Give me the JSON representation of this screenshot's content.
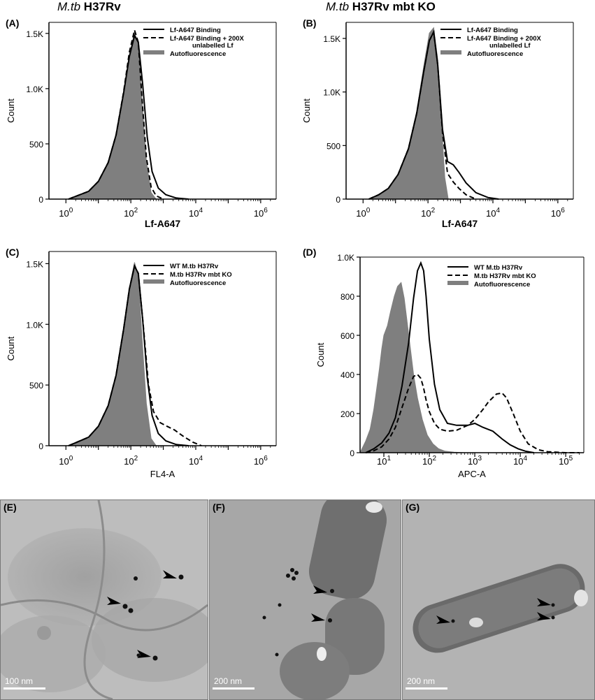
{
  "headers": {
    "left_italic": "M.tb",
    "left_bold": "H37Rv",
    "right_italic": "M.tb",
    "right_bold": "H37Rv mbt KO"
  },
  "colors": {
    "fill": "#7f7f7f",
    "line": "#000000",
    "em_background": "#b8b8b8"
  },
  "chart_data": [
    {
      "panel": "(A)",
      "type": "area",
      "x_scale": "log",
      "xlim": [
        0.3,
        3000000
      ],
      "ylim": [
        0,
        1600
      ],
      "xlabel": "Lf-A647",
      "ylabel": "Count",
      "x_ticks": [
        "10^0",
        "10^2",
        "10^4",
        "10^6"
      ],
      "y_ticks": [
        "0",
        "500",
        "1.0K",
        "1.5K"
      ],
      "legend": [
        "Lf-A647 Binding",
        "Lf-A647 Binding + 200X",
        "unlabelled Lf",
        "Autofluorescence"
      ],
      "series": [
        {
          "name": "Autofluorescence",
          "style": "fill",
          "x": [
            1.2,
            2,
            5,
            10,
            20,
            35,
            60,
            90,
            130,
            170,
            220,
            300,
            420,
            600
          ],
          "y": [
            0,
            20,
            60,
            150,
            320,
            560,
            950,
            1300,
            1510,
            1400,
            900,
            350,
            60,
            0
          ]
        },
        {
          "name": "Lf-A647 Binding",
          "style": "solid",
          "x": [
            1.2,
            2,
            5,
            10,
            20,
            35,
            60,
            90,
            130,
            170,
            230,
            320,
            450,
            700,
            1200,
            2500,
            6000
          ],
          "y": [
            0,
            25,
            70,
            160,
            330,
            580,
            960,
            1290,
            1480,
            1420,
            1050,
            560,
            250,
            100,
            40,
            10,
            0
          ]
        },
        {
          "name": "Lf-A647 Binding + 200X unlabelled Lf",
          "style": "dash",
          "x": [
            1.2,
            2,
            5,
            10,
            20,
            35,
            60,
            90,
            130,
            170,
            220,
            300,
            420,
            600,
            1000
          ],
          "y": [
            0,
            25,
            70,
            160,
            330,
            580,
            970,
            1330,
            1530,
            1420,
            920,
            380,
            110,
            30,
            0
          ]
        }
      ]
    },
    {
      "panel": "(B)",
      "type": "area",
      "x_scale": "log",
      "xlim": [
        0.3,
        3000000
      ],
      "ylim": [
        0,
        1650
      ],
      "xlabel": "Lf-A647",
      "ylabel": "Count",
      "x_ticks": [
        "10^0",
        "10^2",
        "10^4",
        "10^6"
      ],
      "y_ticks": [
        "0",
        "500",
        "1.0K",
        "1.5K"
      ],
      "legend": [
        "Lf-A647 Binding",
        "Lf-A647 Binding + 200X",
        "unlabelled Lf",
        "Autofluorescence"
      ],
      "series": [
        {
          "name": "Autofluorescence",
          "style": "fill",
          "x": [
            1.5,
            3,
            6,
            12,
            25,
            45,
            75,
            110,
            150,
            200,
            260,
            330,
            420
          ],
          "y": [
            0,
            40,
            100,
            230,
            480,
            820,
            1250,
            1550,
            1600,
            1300,
            700,
            200,
            0
          ]
        },
        {
          "name": "Lf-A647 Binding",
          "style": "solid",
          "x": [
            1.5,
            3,
            6,
            12,
            25,
            45,
            75,
            110,
            150,
            200,
            280,
            400,
            600,
            900,
            1500,
            3000,
            7000,
            15000
          ],
          "y": [
            0,
            40,
            100,
            230,
            470,
            800,
            1200,
            1480,
            1560,
            1250,
            650,
            350,
            320,
            250,
            150,
            60,
            15,
            0
          ]
        },
        {
          "name": "Lf-A647 Binding + 200X unlabelled Lf",
          "style": "dash",
          "x": [
            1.5,
            3,
            6,
            12,
            25,
            45,
            75,
            110,
            150,
            200,
            280,
            400,
            600,
            900,
            1500,
            3000
          ],
          "y": [
            0,
            40,
            100,
            230,
            470,
            800,
            1200,
            1480,
            1560,
            1250,
            620,
            240,
            160,
            100,
            40,
            0
          ]
        }
      ]
    },
    {
      "panel": "(C)",
      "type": "area",
      "x_scale": "log",
      "xlim": [
        0.3,
        3000000
      ],
      "ylim": [
        0,
        1600
      ],
      "xlabel": "FL4-A",
      "ylabel": "Count",
      "x_ticks": [
        "10^0",
        "10^2",
        "10^4",
        "10^6"
      ],
      "y_ticks": [
        "0",
        "500",
        "1.0K",
        "1.5K"
      ],
      "legend": [
        "WT M.tb H37Rv",
        "M.tb H37Rv mbt KO",
        "Autofluorescence"
      ],
      "series": [
        {
          "name": "Autofluorescence",
          "style": "fill",
          "x": [
            1.2,
            2,
            5,
            10,
            20,
            35,
            60,
            90,
            130,
            170,
            220,
            300,
            420,
            600
          ],
          "y": [
            0,
            20,
            60,
            150,
            320,
            560,
            950,
            1300,
            1510,
            1400,
            900,
            350,
            60,
            0
          ]
        },
        {
          "name": "WT M.tb H37Rv",
          "style": "solid",
          "x": [
            1.2,
            2,
            5,
            10,
            20,
            35,
            60,
            90,
            130,
            170,
            230,
            320,
            450,
            700,
            1200,
            2500,
            6000
          ],
          "y": [
            0,
            25,
            70,
            160,
            330,
            580,
            960,
            1290,
            1480,
            1420,
            1050,
            560,
            250,
            100,
            40,
            10,
            0
          ]
        },
        {
          "name": "M.tb H37Rv mbt KO",
          "style": "dash",
          "x": [
            1.2,
            2,
            5,
            10,
            20,
            35,
            60,
            90,
            130,
            170,
            240,
            350,
            500,
            800,
            1300,
            2200,
            4000,
            8000,
            15000
          ],
          "y": [
            0,
            25,
            70,
            160,
            330,
            580,
            960,
            1290,
            1480,
            1420,
            1000,
            500,
            280,
            190,
            160,
            130,
            80,
            30,
            0
          ]
        }
      ]
    },
    {
      "panel": "(D)",
      "type": "area",
      "x_scale": "log",
      "xlim": [
        3,
        250000
      ],
      "ylim": [
        0,
        1000
      ],
      "xlabel": "APC-A",
      "ylabel": "Count",
      "x_ticks": [
        "10^1",
        "10^2",
        "10^3",
        "10^4",
        "10^5"
      ],
      "y_ticks": [
        "0",
        "200",
        "400",
        "600",
        "800",
        "1.0K"
      ],
      "legend": [
        "WT M.tb H37Rv",
        "M.tb H37Rv mbt KO",
        "Autofluorescence"
      ],
      "series": [
        {
          "name": "Autofluorescence",
          "style": "fill",
          "x": [
            3,
            4,
            5,
            6,
            7,
            8,
            9,
            10,
            12,
            14,
            17,
            20,
            24,
            28,
            32,
            38,
            45,
            55,
            70,
            90,
            120,
            160,
            220,
            350,
            600
          ],
          "y": [
            0,
            60,
            120,
            220,
            330,
            430,
            530,
            600,
            650,
            720,
            800,
            850,
            870,
            790,
            680,
            540,
            400,
            280,
            170,
            90,
            45,
            20,
            8,
            3,
            0
          ]
        },
        {
          "name": "WT M.tb H37Rv",
          "style": "solid",
          "x": [
            4,
            6,
            9,
            13,
            18,
            25,
            35,
            45,
            55,
            65,
            75,
            85,
            100,
            130,
            170,
            250,
            400,
            700,
            1000,
            1500,
            2500,
            4000,
            6000,
            9000,
            13000,
            20000
          ],
          "y": [
            0,
            20,
            50,
            100,
            180,
            340,
            560,
            790,
            930,
            970,
            930,
            800,
            580,
            350,
            220,
            150,
            140,
            140,
            150,
            130,
            110,
            70,
            40,
            20,
            8,
            0
          ]
        },
        {
          "name": "M.tb H37Rv mbt KO",
          "style": "dash",
          "x": [
            4,
            6,
            9,
            13,
            18,
            25,
            35,
            45,
            55,
            65,
            75,
            85,
            100,
            130,
            170,
            250,
            400,
            700,
            1000,
            1500,
            2000,
            3000,
            4000,
            5000,
            7000,
            10000,
            15000,
            25000,
            40000,
            100000,
            200000
          ],
          "y": [
            0,
            10,
            30,
            70,
            130,
            230,
            330,
            390,
            400,
            380,
            330,
            270,
            210,
            150,
            120,
            110,
            115,
            140,
            170,
            220,
            260,
            300,
            305,
            280,
            200,
            110,
            45,
            15,
            5,
            0,
            0
          ]
        }
      ]
    }
  ],
  "micrographs": [
    {
      "panel": "(E)",
      "scale": "100 nm"
    },
    {
      "panel": "(F)",
      "scale": "200 nm"
    },
    {
      "panel": "(G)",
      "scale": "200 nm"
    }
  ]
}
